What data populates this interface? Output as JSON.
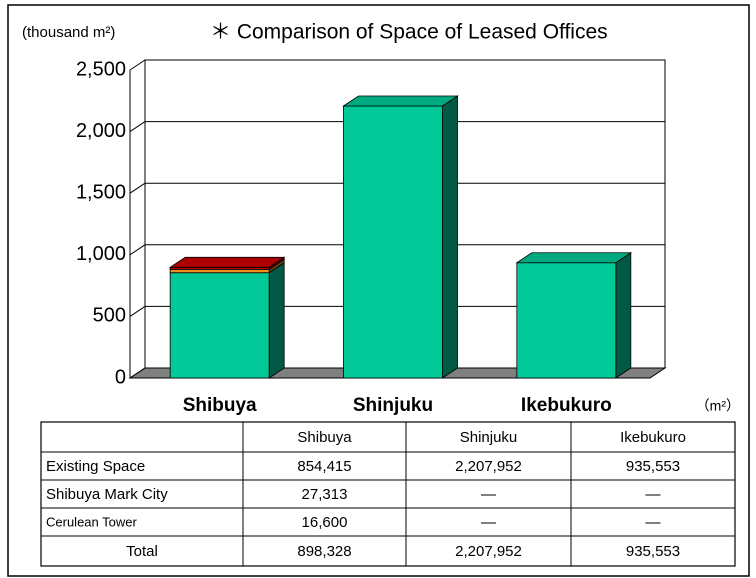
{
  "chart_data": {
    "type": "bar",
    "stacked": true,
    "unit_label": "(thousand m²)",
    "title": "＊ Comparison of Space of Leased Offices",
    "categories": [
      "Shibuya",
      "Shinjuku",
      "Ikebukuro"
    ],
    "series": [
      {
        "color": "#00c896",
        "values": [
          854.415,
          2207.952,
          935.553
        ]
      },
      {
        "color": "#f09020",
        "values": [
          27.313,
          null,
          null
        ]
      },
      {
        "color": "#cc0000",
        "values": [
          16.6,
          null,
          null
        ]
      }
    ],
    "ylim": [
      0,
      2500
    ],
    "yticks": [
      0,
      500,
      {
        "value": 1000,
        "label": "1,000"
      },
      {
        "value": 1500,
        "label": "1,500"
      },
      {
        "value": 2000,
        "label": "2,000"
      },
      {
        "value": 2500,
        "label": "2,500"
      }
    ],
    "grid": true
  },
  "table": {
    "unit": "（m²）",
    "header": [
      "",
      "Shibuya",
      "Shinjuku",
      "Ikebukuro"
    ],
    "rows": [
      [
        "Existing  Space",
        "854,415",
        "2,207,952",
        "935,553"
      ],
      [
        "Shibuya Mark  City",
        "27,313",
        "—",
        "—"
      ],
      [
        "Cerulean Tower",
        "16,600",
        "—",
        "—"
      ],
      [
        "Total",
        "898,328",
        "2,207,952",
        "935,553"
      ]
    ]
  }
}
